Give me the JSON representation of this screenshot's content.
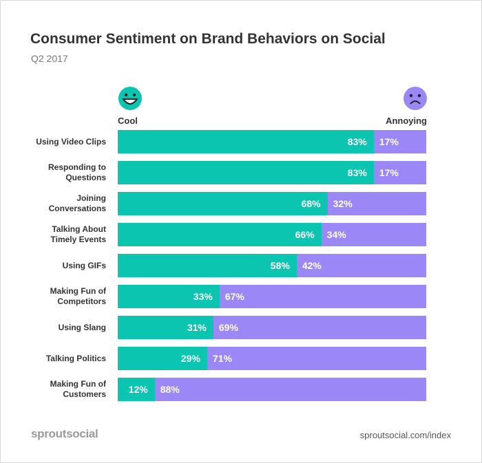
{
  "chart_data": {
    "type": "stacked-bar-horizontal",
    "title": "Consumer Sentiment on Brand Behaviors on Social",
    "subtitle": "Q2 2017",
    "categories": [
      "Using Video Clips",
      "Responding to Questions",
      "Joining Conversations",
      "Talking About Timely Events",
      "Using GIFs",
      "Making Fun of Competitors",
      "Using Slang",
      "Talking Politics",
      "Making Fun of Customers"
    ],
    "series": [
      {
        "name": "Cool",
        "color": "#0bc5b0",
        "values": [
          83,
          83,
          68,
          66,
          58,
          33,
          31,
          29,
          12
        ],
        "value_labels": [
          "83%",
          "83%",
          "68%",
          "66%",
          "58%",
          "33%",
          "31%",
          "29%",
          "12%"
        ]
      },
      {
        "name": "Annoying",
        "color": "#9b87f5",
        "values": [
          17,
          17,
          32,
          34,
          42,
          67,
          69,
          71,
          88
        ],
        "value_labels": [
          "17%",
          "17%",
          "32%",
          "34%",
          "42%",
          "67%",
          "69%",
          "71%",
          "88%"
        ]
      }
    ],
    "logo": "sproutsocial",
    "source": "sproutsocial.com/index"
  }
}
